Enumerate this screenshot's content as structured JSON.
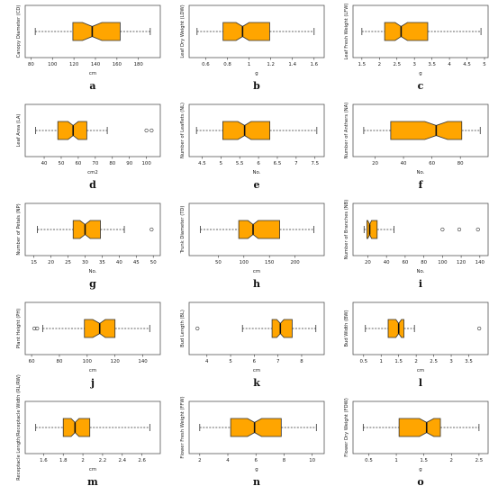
{
  "style": {
    "box_fill": "#FFA500",
    "box_stroke": "#333333",
    "frame_stroke": "#555555"
  },
  "chart_data": [
    {
      "letter": "a",
      "ylabel": "Canopy Diameter (CD)",
      "xlabel": "cm",
      "ticks": [
        80,
        100,
        120,
        140,
        160,
        180
      ],
      "xlim": [
        78,
        197
      ],
      "stats": {
        "min": 84,
        "q1": 119,
        "median": 137,
        "q3": 163,
        "max": 191,
        "notch": [
          128,
          146
        ]
      },
      "outliers": []
    },
    {
      "letter": "b",
      "ylabel": "Leaf Dry Weight (LDW)",
      "xlabel": "g",
      "ticks": [
        0.6,
        0.8,
        1.0,
        1.2,
        1.4,
        1.6
      ],
      "xlim": [
        0.48,
        1.66
      ],
      "stats": {
        "min": 0.52,
        "q1": 0.76,
        "median": 0.94,
        "q3": 1.19,
        "max": 1.6,
        "notch": [
          0.88,
          1.0
        ]
      },
      "outliers": []
    },
    {
      "letter": "c",
      "ylabel": "Leaf Fresh Weight (LFW)",
      "xlabel": "g",
      "ticks": [
        1.5,
        2.0,
        2.5,
        3.0,
        3.5,
        4.0,
        4.5,
        5.0
      ],
      "xlim": [
        1.35,
        5.0
      ],
      "stats": {
        "min": 1.5,
        "q1": 2.15,
        "median": 2.62,
        "q3": 3.38,
        "max": 4.9,
        "notch": [
          2.45,
          2.8
        ]
      },
      "outliers": []
    },
    {
      "letter": "d",
      "ylabel": "Leaf Area (LA)",
      "xlabel": "cm2",
      "ticks": [
        40,
        50,
        60,
        70,
        80,
        90,
        100
      ],
      "xlim": [
        31,
        106
      ],
      "stats": {
        "min": 35,
        "q1": 48,
        "median": 57,
        "q3": 65,
        "max": 77,
        "notch": [
          54,
          60
        ]
      },
      "outliers": [
        100,
        103
      ]
    },
    {
      "letter": "e",
      "ylabel": "Number of Leaflets (NL)",
      "xlabel": "No.",
      "ticks": [
        4.5,
        5.0,
        5.5,
        6.0,
        6.5,
        7.0,
        7.5
      ],
      "xlim": [
        4.25,
        7.65
      ],
      "stats": {
        "min": 4.35,
        "q1": 5.05,
        "median": 5.63,
        "q3": 6.3,
        "max": 7.55,
        "notch": [
          5.45,
          5.8
        ]
      },
      "outliers": []
    },
    {
      "letter": "f",
      "ylabel": "Number of Anthers (NA)",
      "xlabel": "No.",
      "ticks": [
        20,
        40,
        60,
        80
      ],
      "xlim": [
        7,
        97
      ],
      "stats": {
        "min": 12,
        "q1": 31,
        "median": 63,
        "q3": 81,
        "max": 94,
        "notch": [
          55,
          71
        ]
      },
      "outliers": []
    },
    {
      "letter": "g",
      "ylabel": "Number of Petals (NP)",
      "xlabel": "No.",
      "ticks": [
        15,
        20,
        25,
        30,
        35,
        40,
        45,
        50
      ],
      "xlim": [
        13.5,
        51
      ],
      "stats": {
        "min": 16,
        "q1": 26.5,
        "median": 30,
        "q3": 34.5,
        "max": 41.5,
        "notch": [
          28.5,
          31.5
        ]
      },
      "outliers": [
        49.5
      ]
    },
    {
      "letter": "h",
      "ylabel": "Trunk Diameter (TD)",
      "xlabel": "cm",
      "ticks": [
        50,
        100,
        150,
        200
      ],
      "xlim": [
        0,
        250
      ],
      "stats": {
        "min": 15,
        "q1": 90,
        "median": 118,
        "q3": 170,
        "max": 237,
        "notch": [
          108,
          128
        ]
      },
      "outliers": []
    },
    {
      "letter": "i",
      "ylabel": "Number of Branches (NB)",
      "xlabel": "No.",
      "ticks": [
        20,
        40,
        60,
        80,
        100,
        120,
        140
      ],
      "xlim": [
        8,
        145
      ],
      "stats": {
        "min": 16,
        "q1": 19,
        "median": 22,
        "q3": 30,
        "max": 48,
        "notch": [
          20,
          24
        ]
      },
      "outliers": [
        100,
        118,
        138
      ]
    },
    {
      "letter": "j",
      "ylabel": "Plant Height (PH)",
      "xlabel": "cm",
      "ticks": [
        60,
        80,
        100,
        120,
        140
      ],
      "xlim": [
        58,
        150
      ],
      "stats": {
        "min": 68,
        "q1": 98,
        "median": 109,
        "q3": 120,
        "max": 145,
        "notch": [
          104,
          113
        ]
      },
      "outliers": [
        62,
        64
      ]
    },
    {
      "letter": "k",
      "ylabel": "Bud Length (BL)",
      "xlabel": "cm",
      "ticks": [
        4,
        5,
        6,
        7,
        8
      ],
      "xlim": [
        3.4,
        8.8
      ],
      "stats": {
        "min": 5.5,
        "q1": 6.75,
        "median": 7.1,
        "q3": 7.6,
        "max": 8.6,
        "notch": [
          6.95,
          7.25
        ]
      },
      "outliers": [
        3.6
      ]
    },
    {
      "letter": "l",
      "ylabel": "Bud Width (BW)",
      "xlabel": "cm",
      "ticks": [
        0.5,
        1.0,
        1.5,
        2.0,
        2.5,
        3.0,
        3.5
      ],
      "xlim": [
        0.3,
        3.95
      ],
      "stats": {
        "min": 0.55,
        "q1": 1.2,
        "median": 1.5,
        "q3": 1.65,
        "max": 1.95,
        "notch": [
          1.42,
          1.58
        ]
      },
      "outliers": [
        3.8
      ]
    },
    {
      "letter": "m",
      "ylabel": "Receptacle Length/Receptacle Width (RL/RW)",
      "xlabel": "cm",
      "ticks": [
        1.6,
        1.8,
        2.0,
        2.2,
        2.4,
        2.6
      ],
      "xlim": [
        1.45,
        2.75
      ],
      "stats": {
        "min": 1.52,
        "q1": 1.8,
        "median": 1.92,
        "q3": 2.07,
        "max": 2.68,
        "notch": [
          1.88,
          1.96
        ]
      },
      "outliers": []
    },
    {
      "letter": "n",
      "ylabel": "Flower Fresh Weight (FFW)",
      "xlabel": "g",
      "ticks": [
        2,
        4,
        6,
        8,
        10
      ],
      "xlim": [
        1.5,
        10.6
      ],
      "stats": {
        "min": 2.0,
        "q1": 4.2,
        "median": 5.9,
        "q3": 7.8,
        "max": 10.3,
        "notch": [
          5.4,
          6.4
        ]
      },
      "outliers": []
    },
    {
      "letter": "o",
      "ylabel": "Flower Dry Weight (FDW)",
      "xlabel": "g",
      "ticks": [
        0.5,
        1.0,
        1.5,
        2.0,
        2.5
      ],
      "xlim": [
        0.28,
        2.6
      ],
      "stats": {
        "min": 0.4,
        "q1": 1.05,
        "median": 1.55,
        "q3": 1.8,
        "max": 2.5,
        "notch": [
          1.42,
          1.68
        ]
      },
      "outliers": []
    }
  ]
}
